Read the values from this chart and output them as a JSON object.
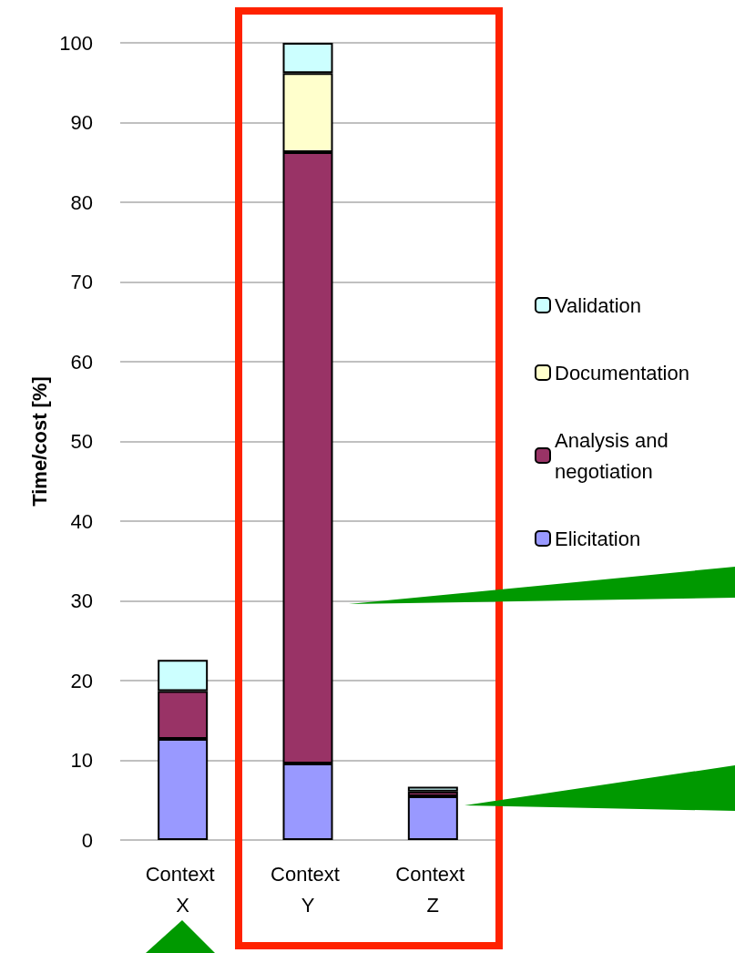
{
  "chart_data": {
    "type": "bar",
    "stacked": true,
    "ylabel": "Time/cost [%]",
    "categories": [
      "Context X",
      "Context Y",
      "Context Z"
    ],
    "series": [
      {
        "name": "Elicitation",
        "color": "#9999ff",
        "values": [
          12.7,
          9.6,
          5.5
        ]
      },
      {
        "name": "Analysis and negotiation",
        "color": "#993366",
        "values": [
          6.0,
          76.7,
          0.6
        ]
      },
      {
        "name": "Documentation",
        "color": "#ffffcc",
        "values": [
          null,
          9.9,
          null
        ]
      },
      {
        "name": "Validation",
        "color": "#ccffff",
        "values": [
          3.9,
          3.8,
          0.6
        ]
      }
    ],
    "ylim": [
      0,
      100
    ],
    "yticks": [
      0,
      10,
      20,
      30,
      40,
      50,
      60,
      70,
      80,
      90,
      100
    ],
    "grid": "y",
    "legend": "right"
  }
}
